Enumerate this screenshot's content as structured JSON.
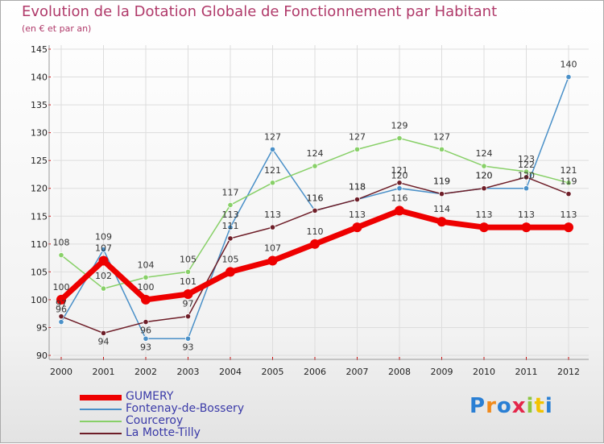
{
  "header": {
    "title": "Evolution de la Dotation Globale de Fonctionnement par Habitant",
    "subtitle": "(en € et par an)"
  },
  "logo": {
    "text": "Proxiti",
    "colors": [
      "#2a7fd4",
      "#f08a1c",
      "#2a7fd4",
      "#e4264a",
      "#8cc63f",
      "#f2c300",
      "#2a7fd4"
    ]
  },
  "chart_data": {
    "type": "line",
    "title": "Evolution de la Dotation Globale de Fonctionnement par Habitant",
    "subtitle": "(en € et par an)",
    "xlabel": "",
    "ylabel": "",
    "ylim": [
      90,
      145
    ],
    "yticks": [
      90,
      95,
      100,
      105,
      110,
      115,
      120,
      125,
      130,
      135,
      140,
      145
    ],
    "grid": true,
    "categories": [
      "2000",
      "2001",
      "2002",
      "2003",
      "2004",
      "2005",
      "2006",
      "2007",
      "2008",
      "2009",
      "2010",
      "2011",
      "2012"
    ],
    "series": [
      {
        "name": "GUMERY",
        "color": "#ee0000",
        "values": [
          100,
          107,
          100,
          101,
          105,
          107,
          110,
          113,
          116,
          114,
          113,
          113,
          113
        ]
      },
      {
        "name": "Fontenay-de-Bossery",
        "color": "#4a90c8",
        "values": [
          96,
          109,
          93,
          93,
          113,
          127,
          116,
          118,
          120,
          119,
          120,
          120,
          140
        ]
      },
      {
        "name": "Courceroy",
        "color": "#88d068",
        "values": [
          108,
          102,
          104,
          105,
          117,
          121,
          124,
          127,
          129,
          127,
          124,
          123,
          121
        ]
      },
      {
        "name": "La Motte-Tilly",
        "color": "#6e1e28",
        "values": [
          97,
          94,
          96,
          97,
          111,
          113,
          116,
          118,
          121,
          119,
          120,
          122,
          119
        ]
      }
    ]
  }
}
